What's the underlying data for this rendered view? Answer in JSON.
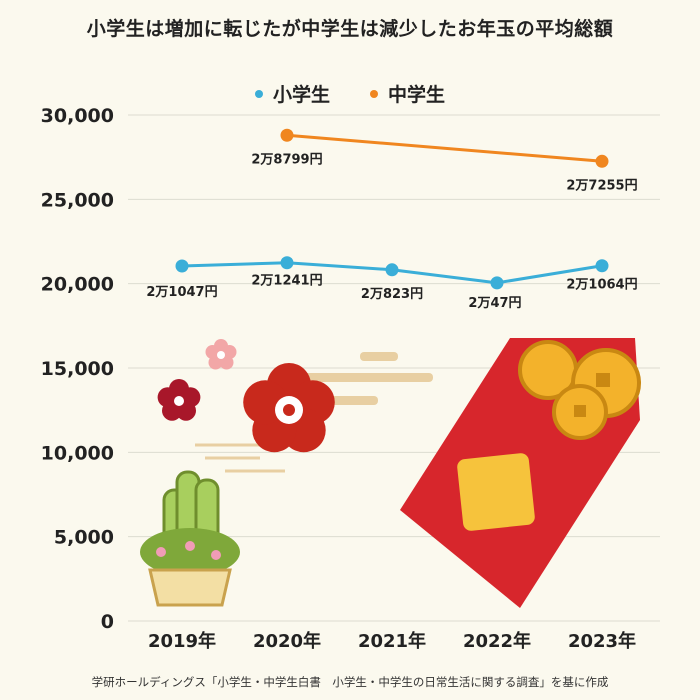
{
  "title": "小学生は増加に転じたが中学生は減少したお年玉の平均総額",
  "source": "学研ホールディングス「小学生・中学生白書　小学生・中学生の日常生活に関する調査」を基に作成",
  "colors": {
    "elementary": "#3aaed8",
    "junior_high": "#f0861f",
    "grid": "#dcdcd0",
    "axis_text": "#222222"
  },
  "chart_data": {
    "type": "line",
    "title": "小学生は増加に転じたが中学生は減少したお年玉の平均総額",
    "xlabel": "",
    "ylabel": "",
    "ylim": [
      0,
      30000
    ],
    "y_ticks": [
      0,
      5000,
      10000,
      15000,
      20000,
      25000,
      30000
    ],
    "y_tick_labels": [
      "0",
      "5,000",
      "10,000",
      "15,000",
      "20,000",
      "25,000",
      "30,000"
    ],
    "categories": [
      "2019年",
      "2020年",
      "2021年",
      "2022年",
      "2023年"
    ],
    "legend_position": "top-center",
    "grid": true,
    "series": [
      {
        "name": "小学生",
        "color": "#3aaed8",
        "values": [
          21047,
          21241,
          20823,
          20047,
          21064
        ],
        "labels": [
          "2万1047円",
          "2万1241円",
          "2万823円",
          "2万47円",
          "2万1064円"
        ]
      },
      {
        "name": "中学生",
        "color": "#f0861f",
        "values": [
          null,
          28799,
          null,
          null,
          27255
        ],
        "labels": [
          null,
          "2万8799円",
          null,
          null,
          "2万7255円"
        ]
      }
    ]
  }
}
